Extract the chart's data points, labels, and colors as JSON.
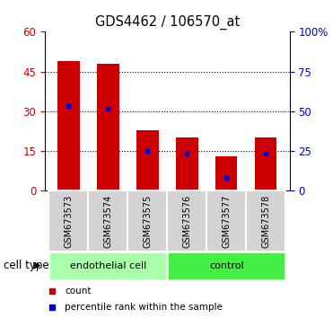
{
  "title": "GDS4462 / 106570_at",
  "samples": [
    "GSM673573",
    "GSM673574",
    "GSM673575",
    "GSM673576",
    "GSM673577",
    "GSM673578"
  ],
  "bar_heights": [
    49,
    48,
    23,
    20,
    13,
    20
  ],
  "percentile_values": [
    32,
    31,
    15,
    14,
    5,
    14
  ],
  "bar_color": "#cc0000",
  "percentile_color": "#0000cc",
  "ylim_left": [
    0,
    60
  ],
  "ylim_right": [
    0,
    100
  ],
  "yticks_left": [
    0,
    15,
    30,
    45,
    60
  ],
  "yticks_right": [
    0,
    25,
    50,
    75,
    100
  ],
  "ytick_labels_right": [
    "0",
    "25",
    "50",
    "75",
    "100%"
  ],
  "group_labels": [
    "endothelial cell",
    "control"
  ],
  "group_colors": [
    "#aaffaa",
    "#44ee44"
  ],
  "cell_type_label": "cell type",
  "legend_items": [
    {
      "label": "count",
      "color": "#cc0000"
    },
    {
      "label": "percentile rank within the sample",
      "color": "#0000cc"
    }
  ],
  "sample_bg_color": "#d3d3d3",
  "bar_width": 0.55,
  "gridline_ticks": [
    15,
    30,
    45
  ]
}
